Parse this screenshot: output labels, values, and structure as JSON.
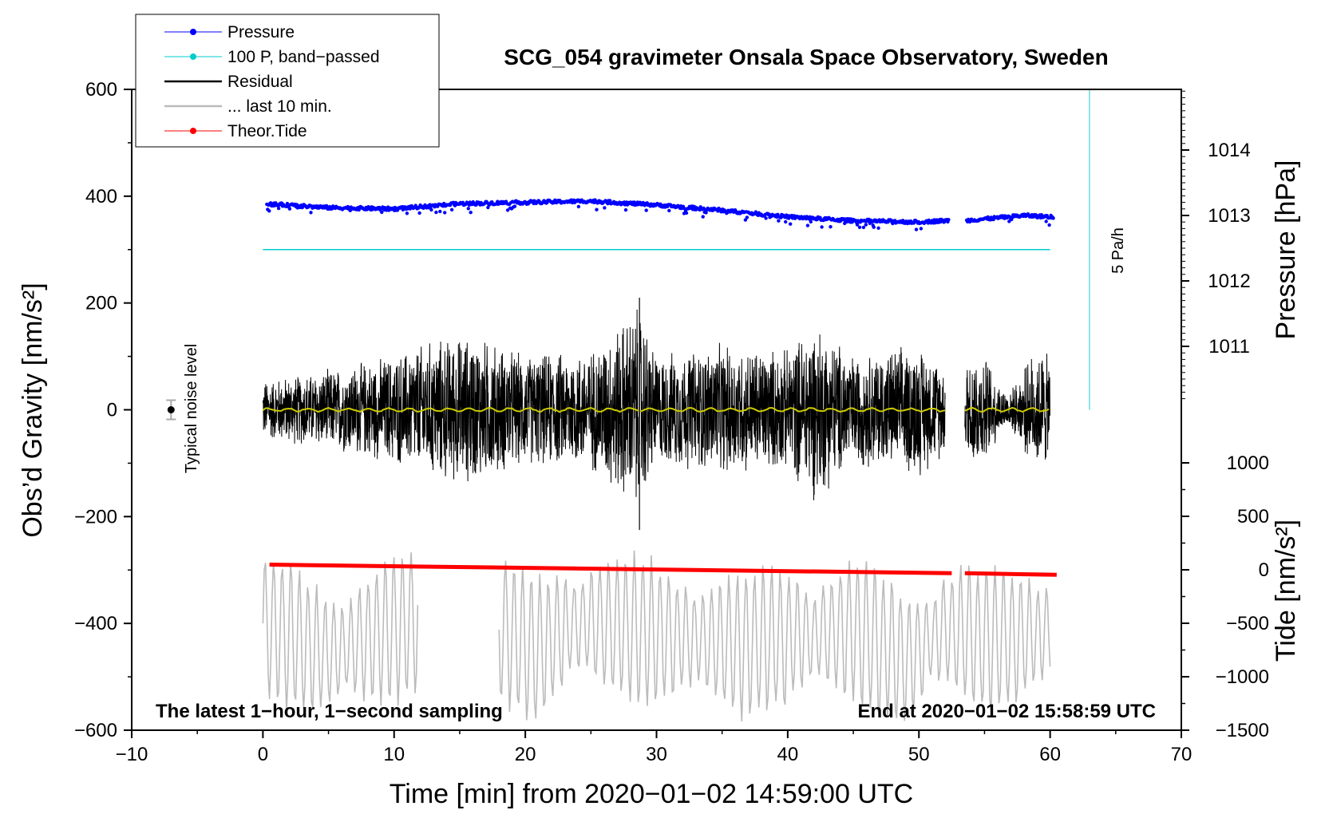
{
  "chart_data": {
    "type": "line",
    "title": "SCG_054 gravimeter Onsala Space Observatory, Sweden",
    "xlabel": "Time [min] from 2020−01−02 14:59:00 UTC",
    "ylabel_left": "Obs’d Gravity [nm/s²]",
    "ylabel_right_top": "Pressure [hPa]",
    "ylabel_right_bottom": "Tide [nm/s²]",
    "xlim": [
      -10,
      70
    ],
    "ylim": [
      -600,
      600
    ],
    "x_ticks": [
      "−10",
      "0",
      "10",
      "20",
      "30",
      "40",
      "50",
      "60",
      "70"
    ],
    "y_ticks": [
      "600",
      "400",
      "200",
      "0",
      "−200",
      "−400",
      "−600"
    ],
    "pressure_axis": {
      "range": [
        1010,
        1015
      ],
      "ticks": [
        "1011",
        "1012",
        "1013",
        "1014"
      ]
    },
    "tide_axis": {
      "range": [
        -1500,
        1500
      ],
      "ticks": [
        "1000",
        "500",
        "0",
        "−500",
        "−1000",
        "−1500"
      ]
    },
    "legend": [
      {
        "label": "Pressure",
        "color": "#0000ff"
      },
      {
        "label": "100 P, band−passed",
        "color": "#00cccc"
      },
      {
        "label": "Residual",
        "color": "#000000"
      },
      {
        "label": "... last 10 min.",
        "color": "#bbbbbb"
      },
      {
        "label": "Theor.Tide",
        "color": "#ff0000"
      }
    ],
    "annotations": {
      "bottom_left": "The latest 1−hour, 1−second sampling",
      "bottom_right": "End at 2020−01−02 15:58:59 UTC",
      "noise_label": "Typical noise level",
      "rate_label": "5 Pa/h"
    },
    "series": [
      {
        "name": "Pressure",
        "unit": "hPa",
        "color": "#0000ff",
        "x": [
          0,
          5,
          10,
          15,
          20,
          25,
          30,
          35,
          40,
          45,
          50,
          52,
          53.5,
          58,
          60
        ],
        "y": [
          1013.18,
          1013.12,
          1013.1,
          1013.18,
          1013.2,
          1013.22,
          1013.16,
          1013.08,
          1012.98,
          1012.92,
          1012.9,
          1012.92,
          1012.92,
          1013.0,
          1012.98
        ]
      },
      {
        "name": "100 P, band−passed",
        "unit": "nm/s²",
        "color": "#00cccc",
        "x": [
          0,
          60
        ],
        "y": [
          300,
          300
        ]
      },
      {
        "name": "Residual",
        "unit": "nm/s²",
        "color": "#000000",
        "x": [
          0,
          5,
          10,
          13,
          16,
          20,
          25,
          28.7,
          30,
          35,
          40,
          42,
          45,
          50,
          52
        ],
        "y_envelope": [
          60,
          80,
          110,
          140,
          150,
          110,
          120,
          210,
          110,
          130,
          120,
          180,
          110,
          130,
          90
        ],
        "y_min": -225,
        "y_max": 210
      },
      {
        "name": "... last 10 min.",
        "unit": "nm/s²",
        "color": "#bbbbbb",
        "x": [
          0,
          5,
          12,
          18,
          21,
          24,
          28,
          33,
          36,
          40,
          45,
          49,
          52,
          55,
          60
        ],
        "y": [
          -380,
          -440,
          -370,
          -390,
          -430,
          -380,
          -390,
          -410,
          -420,
          -410,
          -390,
          -450,
          -390,
          -410,
          -400
        ]
      },
      {
        "name": "Theor.Tide",
        "unit": "nm/s²",
        "color": "#ff0000",
        "x": [
          0.5,
          10,
          20,
          30,
          40,
          52.5,
          53.5,
          60.5
        ],
        "y": [
          -290,
          -294,
          -298,
          -303,
          -308,
          -306,
          -306,
          -309
        ]
      }
    ],
    "noise_marker": {
      "x": -7,
      "y": 0,
      "err": 18
    },
    "rate_marker": {
      "x": 63,
      "y0": 0,
      "y1": 600
    }
  }
}
